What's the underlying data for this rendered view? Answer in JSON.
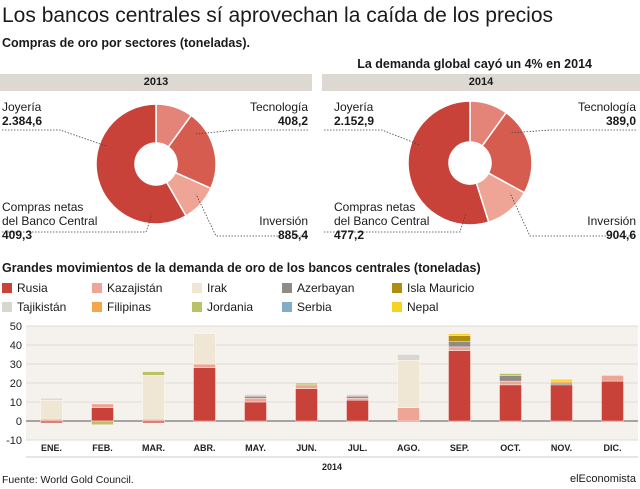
{
  "title": "Los bancos centrales sí aprovechan la caída de los precios",
  "subtitle": "Compras de oro por sectores (toneladas).",
  "headline_2014": "La demanda global cayó un 4% en 2014",
  "bar_section_title": "Grandes movimientos de la demanda de oro de los bancos centrales (toneladas)",
  "source": "Fuente: World Gold Council.",
  "brand": "elEconomista",
  "colors": {
    "joyeria": "#c8423a",
    "tecnologia": "#e48478",
    "inversion": "#d65c50",
    "banco": "#eea596",
    "year_bar": "#ddd8d2",
    "plot_bg": "#f5f2ee"
  },
  "chart_data": [
    {
      "type": "pie",
      "title": "2013",
      "labels": [
        "Joyería",
        "Tecnología",
        "Inversión",
        "Compras netas del Banco Central"
      ],
      "label_lines": [
        [
          "Joyería"
        ],
        [
          "Tecnología"
        ],
        [
          "Inversión"
        ],
        [
          "Compras netas",
          "del Banco Central"
        ]
      ],
      "display_values": [
        "2.384,6",
        "408,2",
        "885,4",
        "409,3"
      ],
      "values": [
        2384.6,
        408.2,
        885.4,
        409.3
      ]
    },
    {
      "type": "pie",
      "title": "2014",
      "labels": [
        "Joyería",
        "Tecnología",
        "Inversión",
        "Compras netas del Banco Central"
      ],
      "label_lines": [
        [
          "Joyería"
        ],
        [
          "Tecnología"
        ],
        [
          "Inversión"
        ],
        [
          "Compras netas",
          "del Banco Central"
        ]
      ],
      "display_values": [
        "2.152,9",
        "389,0",
        "904,6",
        "477,2"
      ],
      "values": [
        2152.9,
        389.0,
        904.6,
        477.2
      ]
    },
    {
      "type": "bar",
      "stacked": true,
      "xlabel": "2014",
      "ylim": [
        -10,
        50
      ],
      "yticks": [
        -10,
        0,
        10,
        20,
        30,
        40,
        50
      ],
      "grid": true,
      "legend_position": "top",
      "categories": [
        "ENE.",
        "FEB.",
        "MAR.",
        "ABR.",
        "MAY.",
        "JUN.",
        "JUL.",
        "AGO.",
        "SEP.",
        "OCT.",
        "NOV.",
        "DIC."
      ],
      "series": [
        {
          "name": "Rusia",
          "color": "#c8423a",
          "values": [
            -1,
            7,
            -1,
            28,
            10,
            17,
            11,
            0,
            37,
            19,
            19,
            21
          ]
        },
        {
          "name": "Kazajistán",
          "color": "#eea596",
          "values": [
            1,
            2,
            1,
            2,
            2,
            2,
            1,
            7,
            2,
            2,
            0,
            3
          ]
        },
        {
          "name": "Irak",
          "color": "#efe7d4",
          "values": [
            10,
            0,
            23,
            16,
            0,
            0,
            0,
            25,
            0,
            0,
            0,
            0
          ]
        },
        {
          "name": "Azerbayan",
          "color": "#918b85",
          "values": [
            0,
            0,
            0,
            0,
            1,
            0,
            1,
            0,
            3,
            3,
            1,
            0
          ]
        },
        {
          "name": "Isla Mauricio",
          "color": "#b08d10",
          "values": [
            0,
            0,
            0,
            0,
            0,
            0,
            0,
            0,
            3,
            0,
            0,
            0
          ]
        },
        {
          "name": "Tajikistán",
          "color": "#d7d6cf",
          "values": [
            1,
            0,
            0,
            0,
            1,
            0,
            1,
            3,
            0,
            0,
            0,
            0
          ]
        },
        {
          "name": "Filipinas",
          "color": "#f3a64a",
          "values": [
            0,
            0,
            0,
            0,
            0,
            0,
            0,
            0,
            0,
            0,
            1,
            0
          ]
        },
        {
          "name": "Jordania",
          "color": "#b9c267",
          "values": [
            0,
            -2,
            2,
            0,
            0,
            1,
            0,
            0,
            0,
            1,
            0,
            0
          ]
        },
        {
          "name": "Serbia",
          "color": "#82adc8",
          "values": [
            0,
            0,
            0,
            0,
            0,
            0,
            0,
            0,
            0,
            0,
            0,
            0
          ]
        },
        {
          "name": "Nepal",
          "color": "#f5d223",
          "values": [
            0,
            0,
            0,
            0,
            0,
            0,
            0,
            0,
            1,
            0,
            1,
            0
          ]
        }
      ]
    }
  ]
}
